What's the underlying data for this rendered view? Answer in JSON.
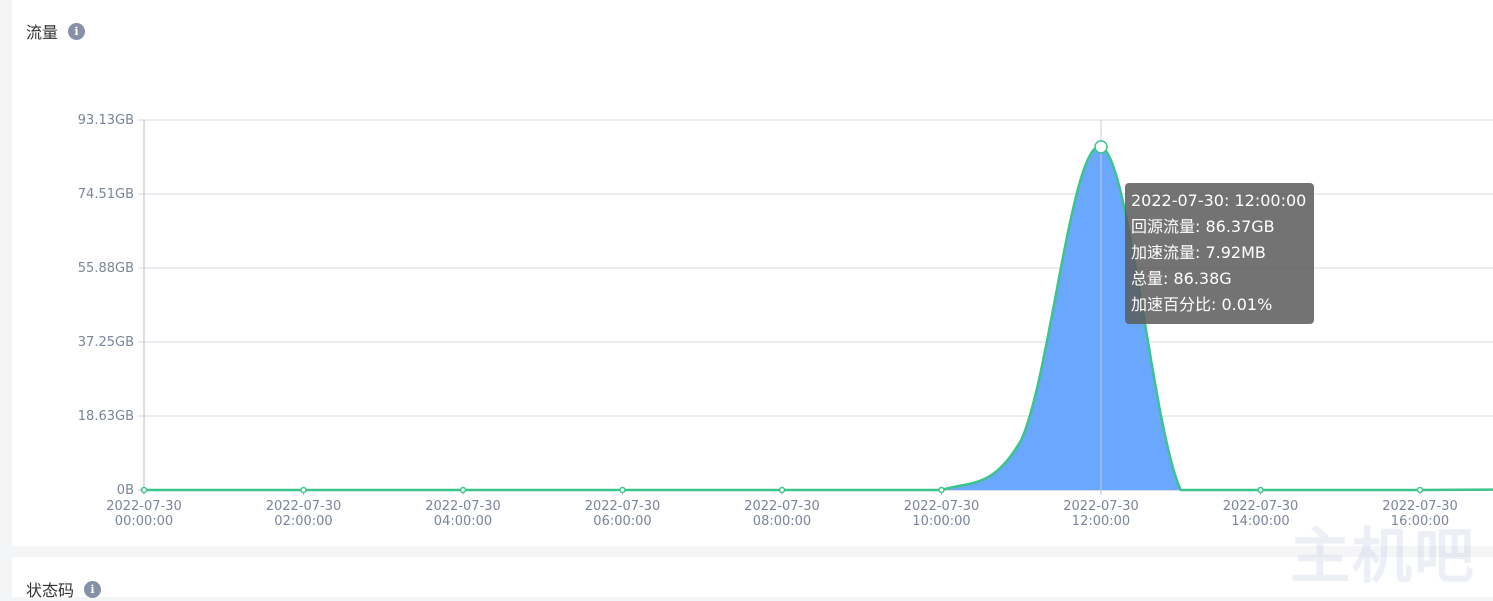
{
  "panel": {
    "title": "流量",
    "info_icon": "info-icon"
  },
  "next_panel": {
    "title": "状态码"
  },
  "tooltip": {
    "time": "2022-07-30: 12:00:00",
    "lines": [
      "回源流量: 86.37GB",
      "加速流量: 7.92MB",
      "总量: 86.38G",
      "加速百分比: 0.01%"
    ]
  },
  "watermark": "主机吧",
  "colors": {
    "area_fill": "#6aa7ff",
    "line": "#3cc48a",
    "grid": "#d5d9e0",
    "axis_text": "#7a8599"
  },
  "chart_data": {
    "type": "area",
    "title": "流量",
    "y_unit": "GB",
    "ylim": [
      0,
      93.13
    ],
    "y_ticks": [
      "0B",
      "18.63GB",
      "37.25GB",
      "55.88GB",
      "74.51GB",
      "93.13GB"
    ],
    "y_tick_values": [
      0,
      18.63,
      37.25,
      55.88,
      74.51,
      93.13
    ],
    "x_ticks": [
      [
        "2022-07-30",
        "00:00:00"
      ],
      [
        "2022-07-30",
        "02:00:00"
      ],
      [
        "2022-07-30",
        "04:00:00"
      ],
      [
        "2022-07-30",
        "06:00:00"
      ],
      [
        "2022-07-30",
        "08:00:00"
      ],
      [
        "2022-07-30",
        "10:00:00"
      ],
      [
        "2022-07-30",
        "12:00:00"
      ],
      [
        "2022-07-30",
        "14:00:00"
      ],
      [
        "2022-07-30",
        "16:00:00"
      ]
    ],
    "x_hours": [
      0,
      1,
      2,
      3,
      4,
      5,
      6,
      7,
      8,
      9,
      10,
      11,
      12,
      13,
      14,
      15,
      16,
      17
    ],
    "series": [
      {
        "values": [
          0,
          0,
          0,
          0,
          0,
          0,
          0,
          0,
          0,
          0,
          0,
          12.6,
          86.37,
          0,
          0,
          0,
          0,
          0.1
        ]
      }
    ],
    "grid": true,
    "highlight_hour": 12
  }
}
